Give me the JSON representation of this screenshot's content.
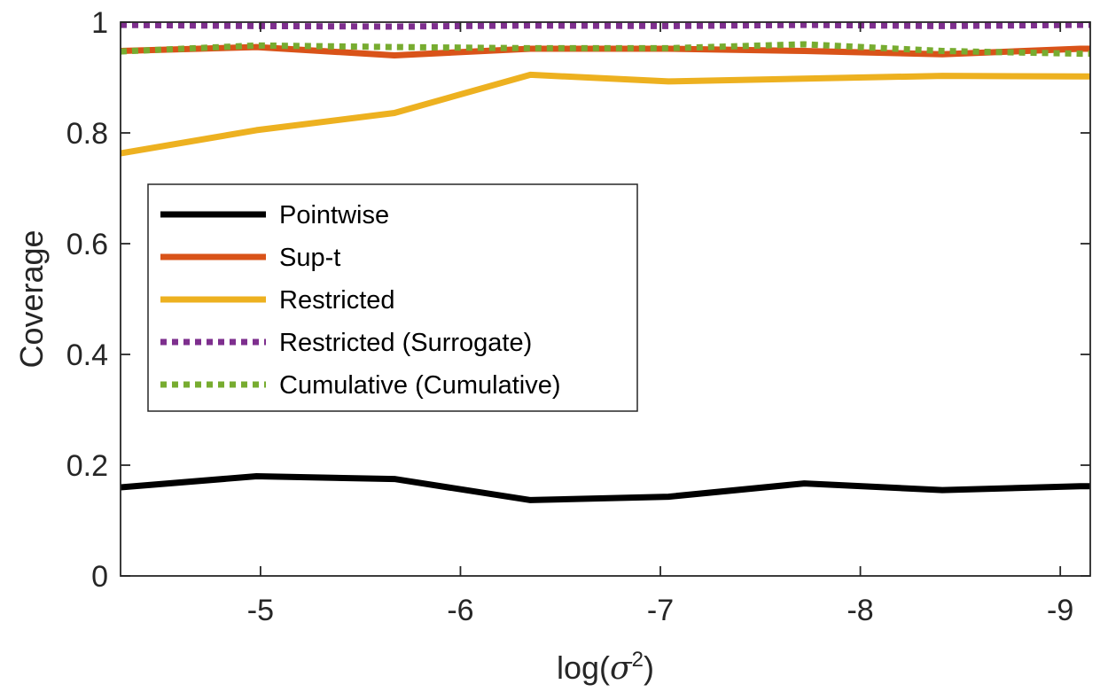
{
  "chart_data": {
    "type": "line",
    "title": "",
    "xlabel": "log(σ²)",
    "xlabel_base": "log(",
    "xlabel_symbol": "σ",
    "xlabel_sup": "2",
    "xlabel_close": ")",
    "ylabel": "Coverage",
    "xlim": [
      -4.3,
      -9.15
    ],
    "ylim": [
      0,
      1
    ],
    "x_reversed": true,
    "xticks": [
      -5,
      -6,
      -7,
      -8,
      -9
    ],
    "xtick_labels": [
      "-5",
      "-6",
      "-7",
      "-8",
      "-9"
    ],
    "yticks": [
      0,
      0.2,
      0.4,
      0.6,
      0.8,
      1
    ],
    "ytick_labels": [
      "0",
      "0.2",
      "0.4",
      "0.6",
      "0.8",
      "1"
    ],
    "grid": false,
    "legend_position": "center-left",
    "x": [
      -4.3,
      -4.98,
      -5.67,
      -6.35,
      -7.04,
      -7.72,
      -8.41,
      -9.1,
      -9.15
    ],
    "series": [
      {
        "name": "Pointwise",
        "color": "#000000",
        "style": "solid",
        "values": [
          0.16,
          0.18,
          0.175,
          0.137,
          0.143,
          0.167,
          0.155,
          0.162,
          0.162
        ]
      },
      {
        "name": "Sup-t",
        "color": "#D95319",
        "style": "solid",
        "values": [
          0.948,
          0.955,
          0.94,
          0.952,
          0.952,
          0.948,
          0.942,
          0.952,
          0.952
        ]
      },
      {
        "name": "Restricted",
        "color": "#EDB120",
        "style": "solid",
        "values": [
          0.763,
          0.805,
          0.836,
          0.905,
          0.893,
          0.898,
          0.903,
          0.902,
          0.902
        ]
      },
      {
        "name": "Restricted (Surrogate)",
        "color": "#7E2F8E",
        "style": "dotted",
        "values": [
          0.995,
          0.993,
          0.992,
          0.994,
          0.993,
          0.995,
          0.993,
          0.995,
          0.995
        ]
      },
      {
        "name": "Cumulative (Cumulative)",
        "color": "#77AC30",
        "style": "dotted",
        "values": [
          0.947,
          0.958,
          0.955,
          0.953,
          0.953,
          0.96,
          0.948,
          0.943,
          0.943
        ]
      }
    ]
  }
}
